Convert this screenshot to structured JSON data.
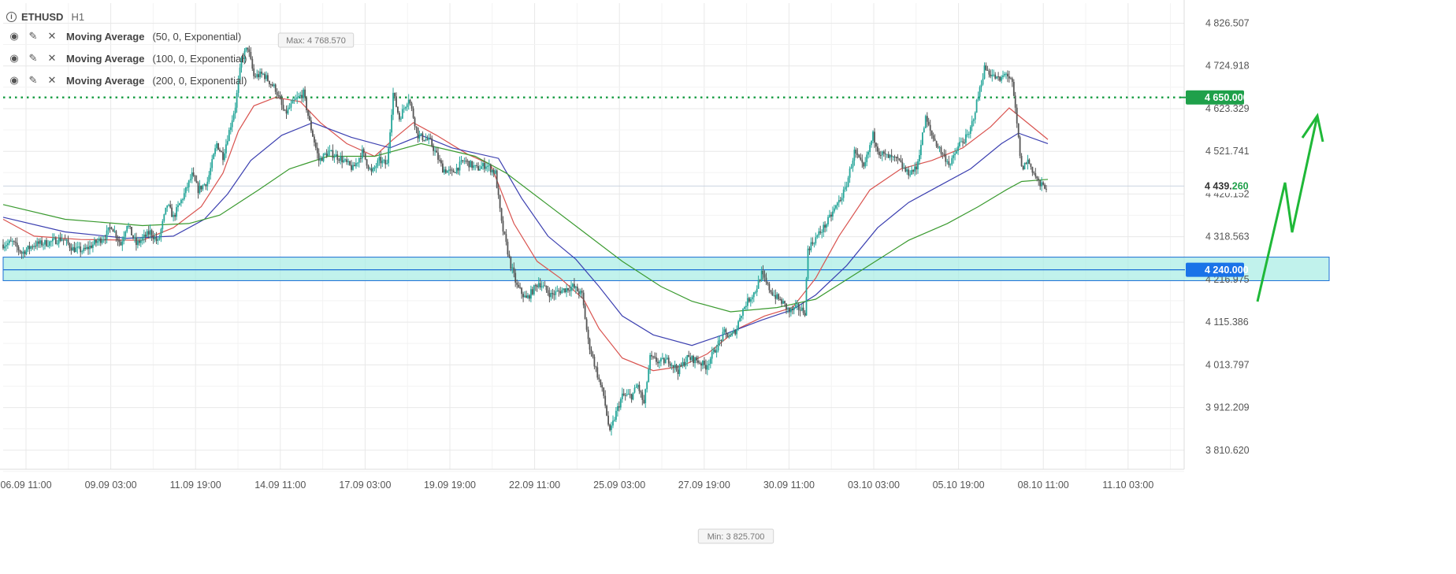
{
  "header": {
    "symbol": "ETHUSD",
    "timeframe": "H1"
  },
  "indicators": [
    {
      "name": "Moving Average",
      "params": "(50, 0, Exponential)",
      "color": "#d9534f"
    },
    {
      "name": "Moving Average",
      "params": "(100, 0, Exponential)",
      "color": "#3b3fb0"
    },
    {
      "name": "Moving Average",
      "params": "(200, 0, Exponential)",
      "color": "#3a9a2f"
    }
  ],
  "colors": {
    "up": "#26a69a",
    "down": "#555555",
    "target": "#1fa04a",
    "zone": "#1b6fd6",
    "zone_fill": "#a6ece4",
    "arrow": "#1fb838"
  },
  "chart_data": {
    "type": "candlestick",
    "symbol": "ETHUSD",
    "timeframe": "H1",
    "x_ticks": [
      "06.09 11:00",
      "09.09 03:00",
      "11.09 19:00",
      "14.09 11:00",
      "17.09 03:00",
      "19.09 19:00",
      "22.09 11:00",
      "25.09 03:00",
      "27.09 19:00",
      "30.09 11:00",
      "03.10 03:00",
      "05.10 19:00",
      "08.10 11:00",
      "11.10 03:00"
    ],
    "y_ticks": [
      "4 826.507",
      "4 724.918",
      "4 623.329",
      "4 521.741",
      "4 420.152",
      "4 318.563",
      "4 216.975",
      "4 115.386",
      "4 013.797",
      "3 912.209",
      "3 810.620"
    ],
    "ylim": [
      3790,
      4850
    ],
    "max_label": "Max: 4 768.570",
    "min_label": "Min: 3 825.700",
    "current_price": {
      "main": "4 439.",
      "tail": "260",
      "value": 4439.26
    },
    "target_level": {
      "label": "4 650.000",
      "value": 4650
    },
    "zone": {
      "label": "4 240.000",
      "value": 4240,
      "top": 4270,
      "bottom": 4214
    },
    "price_path": [
      [
        0,
        4300
      ],
      [
        6,
        4305
      ],
      [
        12,
        4280
      ],
      [
        20,
        4300
      ],
      [
        30,
        4305
      ],
      [
        38,
        4315
      ],
      [
        45,
        4290
      ],
      [
        52,
        4285
      ],
      [
        58,
        4300
      ],
      [
        66,
        4320
      ],
      [
        70,
        4345
      ],
      [
        76,
        4300
      ],
      [
        80,
        4350
      ],
      [
        86,
        4300
      ],
      [
        95,
        4330
      ],
      [
        100,
        4305
      ],
      [
        106,
        4395
      ],
      [
        110,
        4365
      ],
      [
        117,
        4420
      ],
      [
        122,
        4465
      ],
      [
        126,
        4430
      ],
      [
        132,
        4450
      ],
      [
        138,
        4540
      ],
      [
        142,
        4510
      ],
      [
        150,
        4630
      ],
      [
        154,
        4740
      ],
      [
        158,
        4770
      ],
      [
        162,
        4700
      ],
      [
        168,
        4705
      ],
      [
        176,
        4670
      ],
      [
        182,
        4610
      ],
      [
        188,
        4640
      ],
      [
        194,
        4660
      ],
      [
        198,
        4590
      ],
      [
        204,
        4500
      ],
      [
        210,
        4520
      ],
      [
        218,
        4505
      ],
      [
        226,
        4480
      ],
      [
        232,
        4520
      ],
      [
        238,
        4470
      ],
      [
        243,
        4500
      ],
      [
        248,
        4490
      ],
      [
        252,
        4660
      ],
      [
        256,
        4600
      ],
      [
        262,
        4650
      ],
      [
        268,
        4560
      ],
      [
        276,
        4545
      ],
      [
        284,
        4480
      ],
      [
        290,
        4470
      ],
      [
        298,
        4500
      ],
      [
        306,
        4480
      ],
      [
        312,
        4490
      ],
      [
        318,
        4470
      ],
      [
        322,
        4350
      ],
      [
        328,
        4250
      ],
      [
        332,
        4200
      ],
      [
        338,
        4170
      ],
      [
        346,
        4210
      ],
      [
        354,
        4180
      ],
      [
        360,
        4190
      ],
      [
        368,
        4200
      ],
      [
        374,
        4180
      ],
      [
        378,
        4070
      ],
      [
        384,
        3990
      ],
      [
        388,
        3940
      ],
      [
        392,
        3850
      ],
      [
        396,
        3900
      ],
      [
        400,
        3940
      ],
      [
        406,
        3940
      ],
      [
        410,
        3965
      ],
      [
        414,
        3920
      ],
      [
        418,
        4030
      ],
      [
        424,
        4020
      ],
      [
        430,
        4025
      ],
      [
        436,
        4000
      ],
      [
        442,
        4030
      ],
      [
        448,
        4025
      ],
      [
        454,
        4010
      ],
      [
        460,
        4050
      ],
      [
        466,
        4090
      ],
      [
        470,
        4080
      ],
      [
        474,
        4100
      ],
      [
        476,
        4130
      ],
      [
        480,
        4160
      ],
      [
        486,
        4190
      ],
      [
        490,
        4230
      ],
      [
        494,
        4200
      ],
      [
        498,
        4180
      ],
      [
        504,
        4160
      ],
      [
        508,
        4140
      ],
      [
        513,
        4150
      ],
      [
        518,
        4140
      ],
      [
        520,
        4290
      ],
      [
        526,
        4320
      ],
      [
        532,
        4350
      ],
      [
        538,
        4390
      ],
      [
        544,
        4430
      ],
      [
        550,
        4520
      ],
      [
        556,
        4480
      ],
      [
        562,
        4560
      ],
      [
        566,
        4520
      ],
      [
        570,
        4510
      ],
      [
        578,
        4500
      ],
      [
        584,
        4470
      ],
      [
        590,
        4480
      ],
      [
        596,
        4600
      ],
      [
        600,
        4560
      ],
      [
        606,
        4520
      ],
      [
        612,
        4490
      ],
      [
        618,
        4540
      ],
      [
        624,
        4560
      ],
      [
        628,
        4620
      ],
      [
        634,
        4720
      ],
      [
        640,
        4700
      ],
      [
        644,
        4690
      ],
      [
        648,
        4710
      ],
      [
        652,
        4680
      ],
      [
        654,
        4620
      ],
      [
        658,
        4480
      ],
      [
        662,
        4500
      ],
      [
        666,
        4470
      ],
      [
        670,
        4440
      ],
      [
        674,
        4439
      ]
    ],
    "ma": [
      {
        "name": "MA 50",
        "period": 50,
        "points": [
          [
            0,
            4360
          ],
          [
            20,
            4320
          ],
          [
            50,
            4312
          ],
          [
            90,
            4310
          ],
          [
            110,
            4340
          ],
          [
            128,
            4390
          ],
          [
            142,
            4470
          ],
          [
            152,
            4570
          ],
          [
            162,
            4630
          ],
          [
            176,
            4650
          ],
          [
            192,
            4640
          ],
          [
            205,
            4590
          ],
          [
            222,
            4540
          ],
          [
            240,
            4510
          ],
          [
            252,
            4550
          ],
          [
            265,
            4590
          ],
          [
            280,
            4560
          ],
          [
            300,
            4515
          ],
          [
            315,
            4490
          ],
          [
            330,
            4350
          ],
          [
            345,
            4260
          ],
          [
            360,
            4220
          ],
          [
            375,
            4170
          ],
          [
            385,
            4100
          ],
          [
            400,
            4030
          ],
          [
            420,
            4000
          ],
          [
            438,
            4010
          ],
          [
            455,
            4040
          ],
          [
            475,
            4100
          ],
          [
            492,
            4130
          ],
          [
            510,
            4150
          ],
          [
            525,
            4220
          ],
          [
            540,
            4320
          ],
          [
            560,
            4430
          ],
          [
            580,
            4480
          ],
          [
            600,
            4500
          ],
          [
            620,
            4530
          ],
          [
            638,
            4580
          ],
          [
            650,
            4625
          ],
          [
            665,
            4580
          ],
          [
            675,
            4550
          ]
        ]
      },
      {
        "name": "MA 100",
        "period": 100,
        "points": [
          [
            0,
            4365
          ],
          [
            40,
            4330
          ],
          [
            80,
            4315
          ],
          [
            110,
            4320
          ],
          [
            130,
            4360
          ],
          [
            145,
            4420
          ],
          [
            160,
            4500
          ],
          [
            180,
            4560
          ],
          [
            200,
            4590
          ],
          [
            225,
            4555
          ],
          [
            250,
            4530
          ],
          [
            270,
            4560
          ],
          [
            290,
            4530
          ],
          [
            320,
            4505
          ],
          [
            335,
            4410
          ],
          [
            352,
            4320
          ],
          [
            370,
            4265
          ],
          [
            385,
            4200
          ],
          [
            400,
            4130
          ],
          [
            420,
            4085
          ],
          [
            445,
            4060
          ],
          [
            465,
            4085
          ],
          [
            490,
            4120
          ],
          [
            510,
            4145
          ],
          [
            525,
            4180
          ],
          [
            545,
            4250
          ],
          [
            565,
            4340
          ],
          [
            585,
            4400
          ],
          [
            605,
            4440
          ],
          [
            625,
            4480
          ],
          [
            645,
            4540
          ],
          [
            656,
            4565
          ],
          [
            675,
            4540
          ]
        ]
      },
      {
        "name": "MA 200",
        "period": 200,
        "points": [
          [
            0,
            4395
          ],
          [
            40,
            4360
          ],
          [
            90,
            4345
          ],
          [
            120,
            4350
          ],
          [
            140,
            4370
          ],
          [
            165,
            4430
          ],
          [
            185,
            4480
          ],
          [
            210,
            4510
          ],
          [
            240,
            4510
          ],
          [
            270,
            4540
          ],
          [
            305,
            4510
          ],
          [
            325,
            4470
          ],
          [
            350,
            4400
          ],
          [
            375,
            4330
          ],
          [
            400,
            4260
          ],
          [
            425,
            4200
          ],
          [
            445,
            4165
          ],
          [
            470,
            4140
          ],
          [
            500,
            4150
          ],
          [
            525,
            4170
          ],
          [
            555,
            4240
          ],
          [
            585,
            4310
          ],
          [
            610,
            4350
          ],
          [
            630,
            4390
          ],
          [
            648,
            4430
          ],
          [
            658,
            4450
          ],
          [
            675,
            4455
          ]
        ]
      }
    ]
  }
}
